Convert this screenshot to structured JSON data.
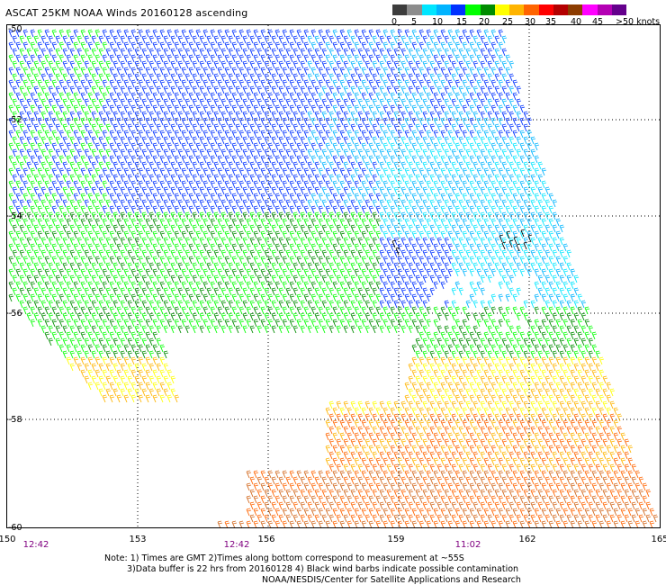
{
  "title": "ASCAT 25KM NOAA Winds 20160128 ascending",
  "legend": {
    "colors": [
      "#3c3c3c",
      "#8c8c8c",
      "#00e6ff",
      "#00b4ff",
      "#0032ff",
      "#00ff00",
      "#008c00",
      "#ffff00",
      "#ffb400",
      "#ff6400",
      "#ff0000",
      "#b40000",
      "#8c3c00",
      "#ff00ff",
      "#b400b4",
      "#64008c"
    ],
    "labels": [
      "0",
      "5",
      "10",
      "15",
      "20",
      "25",
      "30",
      "35",
      "40",
      "45",
      ">50 knots"
    ]
  },
  "map": {
    "lon_labels": [
      "150",
      "153",
      "156",
      "159",
      "162",
      "165"
    ],
    "lat_labels": [
      "-50",
      "-52",
      "-54",
      "-56",
      "-58",
      "-60"
    ],
    "time_labels": [
      "12:42",
      "12:42",
      "11:02"
    ],
    "time_color": "#800080"
  },
  "notes": {
    "line1": "Note: 1) Times are GMT 2)Times along bottom correspond to measurement at ~55S",
    "line2": "3)Data buffer is 22 hrs from 20160128 4) Black wind barbs indicate possible contamination",
    "line3": "NOAA/NESDIS/Center for Satellite Applications and Research"
  }
}
